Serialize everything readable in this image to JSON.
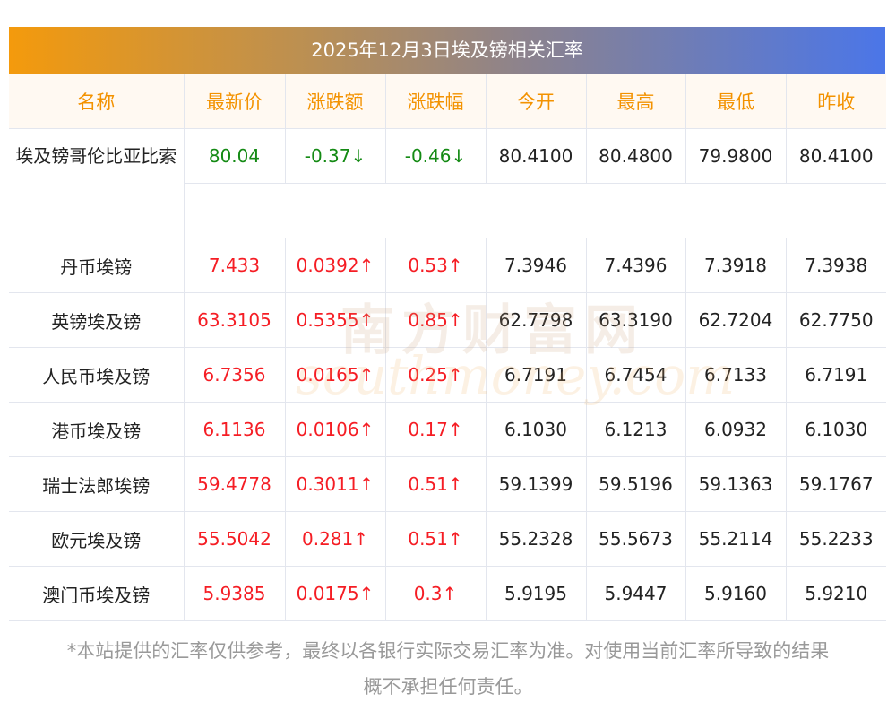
{
  "title": "2025年12月3日埃及镑相关汇率",
  "columns": [
    "名称",
    "最新价",
    "涨跌额",
    "涨跌幅",
    "今开",
    "最高",
    "最低",
    "昨收"
  ],
  "rows": [
    {
      "name": "埃及镑哥伦比亚比索",
      "latest": "80.04",
      "change": "-0.37↓",
      "pct": "-0.46↓",
      "open": "80.4100",
      "high": "80.4800",
      "low": "79.9800",
      "prev": "80.4100",
      "dir": "down"
    },
    {
      "name": "丹币埃镑",
      "latest": "7.433",
      "change": "0.0392↑",
      "pct": "0.53↑",
      "open": "7.3946",
      "high": "7.4396",
      "low": "7.3918",
      "prev": "7.3938",
      "dir": "up"
    },
    {
      "name": "英镑埃及镑",
      "latest": "63.3105",
      "change": "0.5355↑",
      "pct": "0.85↑",
      "open": "62.7798",
      "high": "63.3190",
      "low": "62.7204",
      "prev": "62.7750",
      "dir": "up"
    },
    {
      "name": "人民币埃及镑",
      "latest": "6.7356",
      "change": "0.0165↑",
      "pct": "0.25↑",
      "open": "6.7191",
      "high": "6.7454",
      "low": "6.7133",
      "prev": "6.7191",
      "dir": "up"
    },
    {
      "name": "港币埃及镑",
      "latest": "6.1136",
      "change": "0.0106↑",
      "pct": "0.17↑",
      "open": "6.1030",
      "high": "6.1213",
      "low": "6.0932",
      "prev": "6.1030",
      "dir": "up"
    },
    {
      "name": "瑞士法郎埃镑",
      "latest": "59.4778",
      "change": "0.3011↑",
      "pct": "0.51↑",
      "open": "59.1399",
      "high": "59.5196",
      "low": "59.1363",
      "prev": "59.1767",
      "dir": "up"
    },
    {
      "name": "欧元埃及镑",
      "latest": "55.5042",
      "change": "0.281↑",
      "pct": "0.51↑",
      "open": "55.2328",
      "high": "55.5673",
      "low": "55.2114",
      "prev": "55.2233",
      "dir": "up"
    },
    {
      "name": "澳门币埃及镑",
      "latest": "5.9385",
      "change": "0.0175↑",
      "pct": "0.3↑",
      "open": "5.9195",
      "high": "5.9447",
      "low": "5.9160",
      "prev": "5.9210",
      "dir": "up"
    }
  ],
  "footer": [
    "*本站提供的汇率仅供参考，最终以各银行实际交易汇率为准。对使用当前汇率所导致的结果",
    "概不承担任何责任。"
  ],
  "watermark": [
    "南方财富网",
    "southmoney.com"
  ],
  "colors": {
    "up": "#f51d24",
    "down": "#148a14",
    "header_text": "#f39200"
  }
}
